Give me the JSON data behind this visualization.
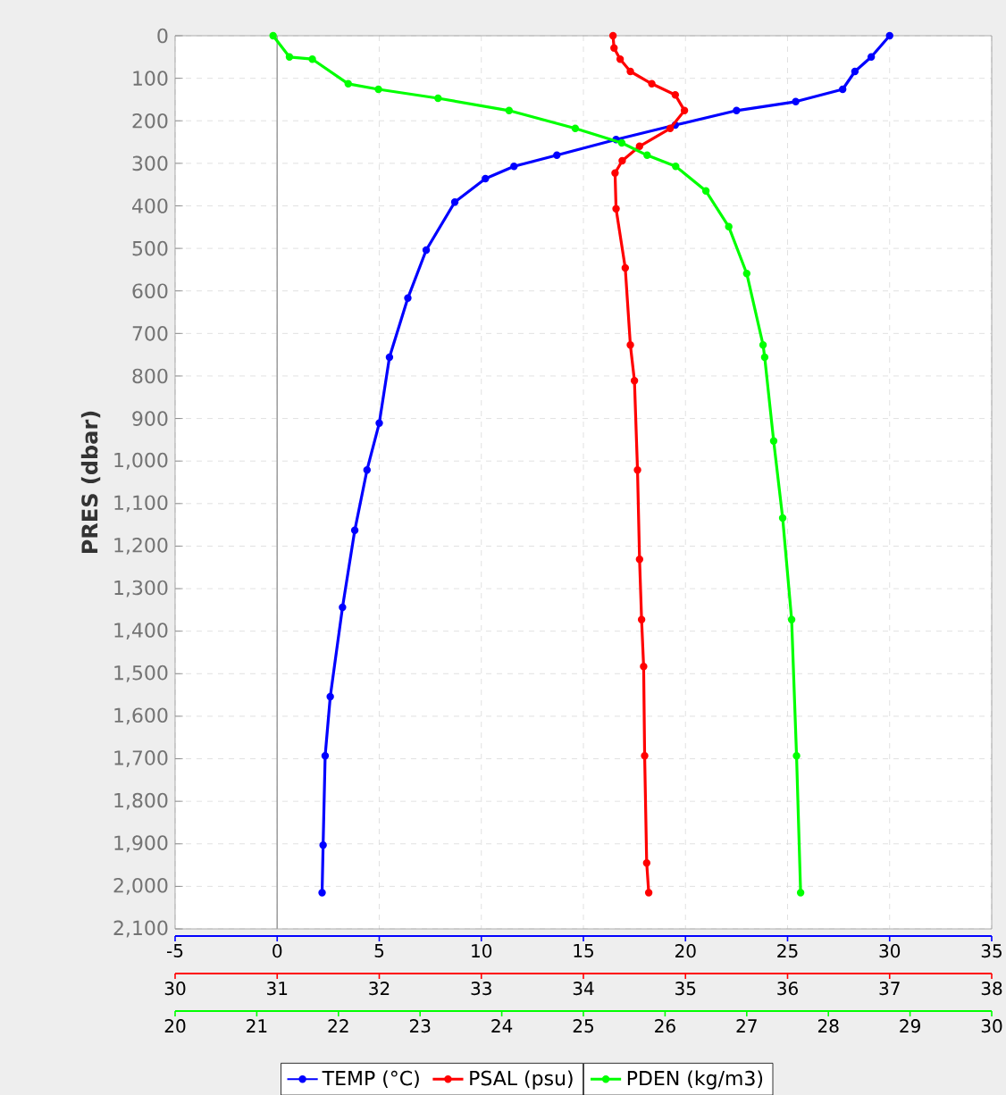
{
  "chart_data": [
    {
      "type": "line",
      "ylabel": "PRES (dbar)",
      "ylim": [
        2100,
        0
      ],
      "yticks": [
        0,
        100,
        200,
        300,
        400,
        500,
        600,
        700,
        800,
        900,
        {
          "value": 1000,
          "label": "1,000"
        },
        {
          "value": 1100,
          "label": "1,100"
        },
        {
          "value": 1200,
          "label": "1,200"
        },
        {
          "value": 1300,
          "label": "1,300"
        },
        {
          "value": 1400,
          "label": "1,400"
        },
        {
          "value": 1500,
          "label": "1,500"
        },
        {
          "value": 1600,
          "label": "1,600"
        },
        {
          "value": 1700,
          "label": "1,700"
        },
        {
          "value": 1800,
          "label": "1,800"
        },
        {
          "value": 1900,
          "label": "1,900"
        },
        {
          "value": 2000,
          "label": "2,000"
        },
        {
          "value": 2100,
          "label": "2,100"
        }
      ],
      "xlim": [
        -5,
        35
      ],
      "xticks": [
        -5,
        0,
        5,
        10,
        15,
        20,
        25,
        30,
        35
      ],
      "x2lim": [
        30,
        38
      ],
      "x2ticks": [
        30,
        31,
        32,
        33,
        34,
        35,
        36,
        37,
        38
      ],
      "grid": true,
      "legend": "bottom",
      "marker": "circle",
      "line_style": "solid",
      "ref_lines": [
        {
          "axis": "x",
          "value": 0,
          "color": "#a0a0a0"
        }
      ],
      "series": [
        {
          "name": "TEMP (°C)",
          "color": "#0000ff",
          "x": [
            30.0,
            29.1,
            28.3,
            27.7,
            25.4,
            22.5,
            19.5,
            16.6,
            13.7,
            11.6,
            10.2,
            8.7,
            7.3,
            6.4,
            5.5,
            5.0,
            4.4,
            3.8,
            3.2,
            2.6,
            2.35,
            2.25,
            2.2
          ],
          "values": [
            0,
            50,
            84,
            126,
            155,
            176,
            210,
            244,
            281,
            307,
            336,
            391,
            504,
            617,
            756,
            911,
            1021,
            1163,
            1344,
            1554,
            1693,
            1903,
            2015
          ]
        },
        {
          "name": "PSAL (psu)",
          "color": "#ff0000",
          "axis": "x2",
          "x": [
            34.29,
            34.3,
            34.36,
            34.46,
            34.67,
            34.9,
            34.99,
            34.85,
            34.55,
            34.38,
            34.31,
            34.32,
            34.41,
            34.46,
            34.5,
            34.53,
            34.55,
            34.57,
            34.59,
            34.6,
            34.62,
            34.64
          ],
          "values": [
            0,
            29,
            55,
            84,
            113,
            139,
            176,
            218,
            260,
            294,
            323,
            407,
            546,
            727,
            811,
            1021,
            1231,
            1373,
            1483,
            1693,
            1945,
            2015
          ]
        }
      ]
    },
    {
      "type": "line",
      "ylim": [
        2100,
        0
      ],
      "xlim": [
        20,
        30
      ],
      "xticks": [
        20,
        21,
        22,
        23,
        24,
        25,
        26,
        27,
        28,
        29,
        30
      ],
      "tick_labels": "x",
      "legend": "bottom",
      "marker": "circle",
      "line_style": "solid",
      "series": [
        {
          "name": "PDEN (kg/m3)",
          "color": "#00ff00",
          "x": [
            21.2,
            21.4,
            21.68,
            22.12,
            22.49,
            23.22,
            24.09,
            24.9,
            25.47,
            25.78,
            26.13,
            26.5,
            26.78,
            27.0,
            27.2,
            27.22,
            27.33,
            27.44,
            27.55,
            27.61,
            27.66
          ],
          "values": [
            0,
            50,
            55,
            113,
            126,
            147,
            176,
            218,
            252,
            281,
            307,
            365,
            449,
            559,
            727,
            756,
            953,
            1134,
            1373,
            1693,
            2015
          ]
        }
      ]
    }
  ]
}
